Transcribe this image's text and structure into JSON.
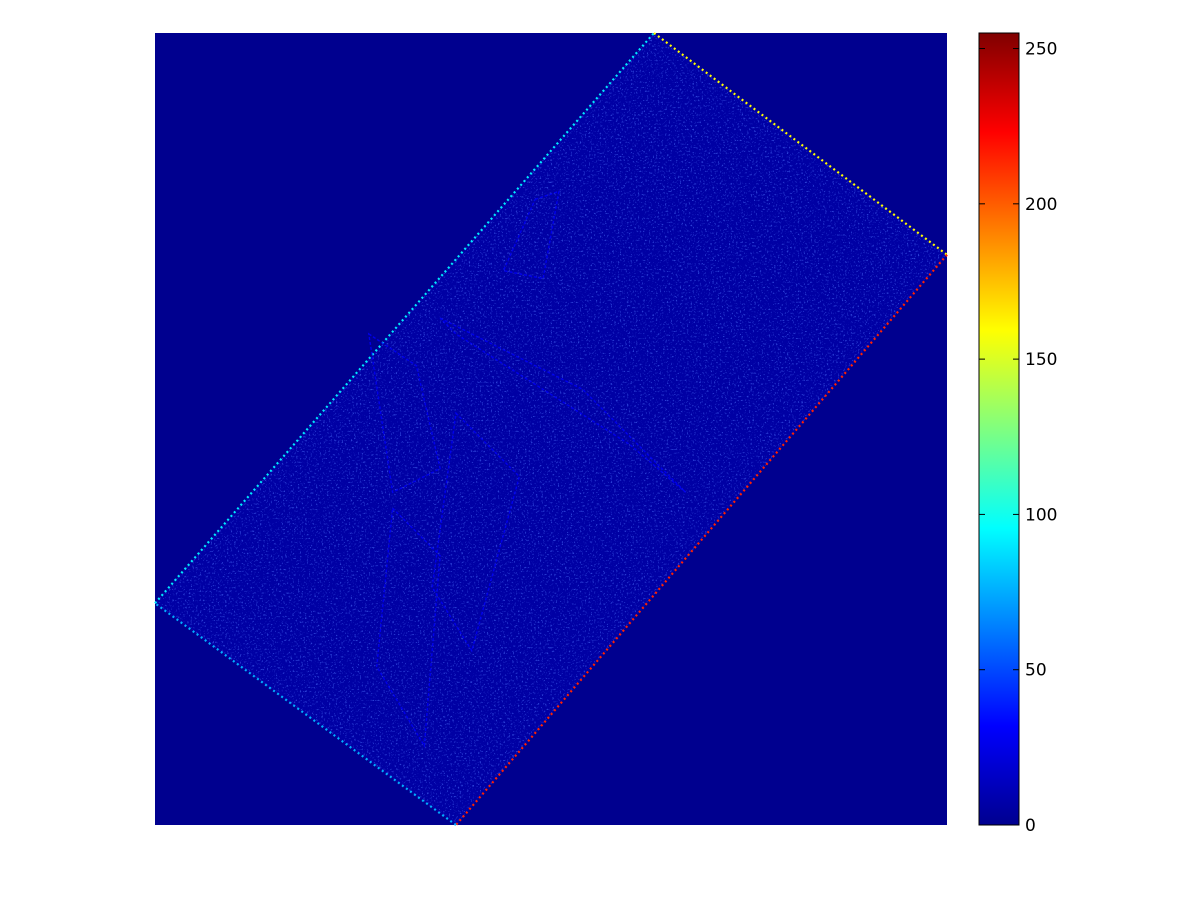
{
  "chart_data": {
    "type": "heatmap",
    "title": "",
    "xlabel": "",
    "ylabel": "",
    "axes_visible": false,
    "colormap": "jet",
    "colormap_stops": [
      "#00008f",
      "#0000ff",
      "#00ffff",
      "#ffff00",
      "#ff0000",
      "#800000"
    ],
    "background_value": 0,
    "colorbar": {
      "location": "right",
      "range": [
        0,
        255
      ],
      "ticks": [
        0,
        50,
        100,
        150,
        200,
        250
      ],
      "tick_labels": [
        "0",
        "50",
        "100",
        "150",
        "200",
        "250"
      ]
    },
    "rotated_region": {
      "corners": [
        [
          0.63,
          0.0
        ],
        [
          1.0,
          0.28
        ],
        [
          0.38,
          1.0
        ],
        [
          0.0,
          0.72
        ]
      ],
      "interior_level": 6,
      "edge_levels": {
        "top_left": 90,
        "top_right": 160,
        "bottom_right": 215,
        "bottom_left": 75
      }
    }
  }
}
